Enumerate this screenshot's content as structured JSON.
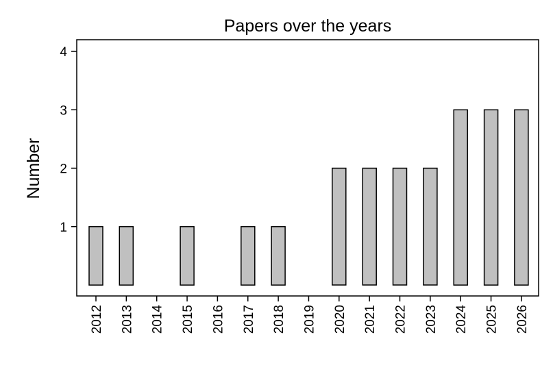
{
  "chart_data": {
    "type": "bar",
    "title": "Papers over the years",
    "xlabel": "",
    "ylabel": "Number",
    "categories": [
      "2012",
      "2013",
      "2014",
      "2015",
      "2016",
      "2017",
      "2018",
      "2019",
      "2020",
      "2021",
      "2022",
      "2023",
      "2024",
      "2025",
      "2026"
    ],
    "values": [
      1,
      1,
      0,
      1,
      0,
      1,
      1,
      0,
      2,
      2,
      2,
      2,
      3,
      3,
      3
    ],
    "ylim": [
      0,
      4
    ],
    "yticks": [
      1,
      2,
      3,
      4
    ],
    "grid": false,
    "bar_color": "#c0c0c0",
    "bar_edge_color": "#000000"
  }
}
